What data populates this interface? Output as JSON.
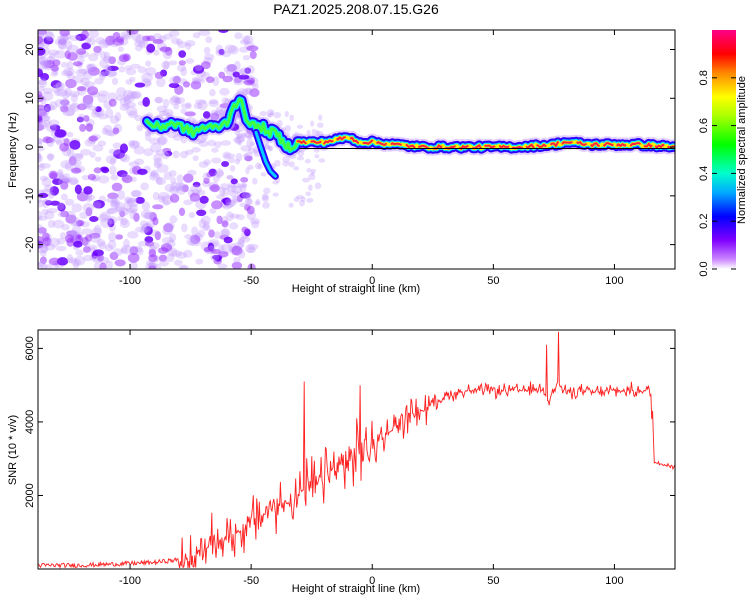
{
  "chart_data": [
    {
      "type": "heatmap",
      "title": "PAZ1.2025.208.07.15.G26",
      "xlabel": "Height of straight line (km)",
      "ylabel": "Frequency (Hz)",
      "xlim": [
        -138,
        125
      ],
      "ylim": [
        -25,
        24
      ],
      "x_ticks": [
        -100,
        -50,
        0,
        50,
        100
      ],
      "y_ticks": [
        -20,
        -10,
        0,
        10,
        20
      ],
      "colorbar": {
        "label": "Normalized spectral amplitude",
        "range": [
          0,
          1
        ],
        "ticks": [
          "0.0",
          "0.2",
          "0.4",
          "0.6",
          "0.8"
        ],
        "colormap": [
          "#cc88ff",
          "#6600ff",
          "#0000ff",
          "#00ffff",
          "#00ff00",
          "#ffff00",
          "#ff8800",
          "#ff0000",
          "#ff0080"
        ]
      },
      "ridge_points": [
        {
          "x": -93,
          "y": 5
        },
        {
          "x": -88,
          "y": 4
        },
        {
          "x": -83,
          "y": 5
        },
        {
          "x": -78,
          "y": 4
        },
        {
          "x": -74,
          "y": 3
        },
        {
          "x": -70,
          "y": 4
        },
        {
          "x": -65,
          "y": 4
        },
        {
          "x": -60,
          "y": 5
        },
        {
          "x": -57,
          "y": 9
        },
        {
          "x": -54,
          "y": 9
        },
        {
          "x": -52,
          "y": 6
        },
        {
          "x": -48,
          "y": 4
        },
        {
          "x": -45,
          "y": 4
        },
        {
          "x": -43,
          "y": 3
        },
        {
          "x": -40,
          "y": 3
        },
        {
          "x": -37,
          "y": 1
        },
        {
          "x": -34,
          "y": 0
        },
        {
          "x": -30,
          "y": 1
        },
        {
          "x": -20,
          "y": 1
        },
        {
          "x": -10,
          "y": 2
        },
        {
          "x": -5,
          "y": 1
        },
        {
          "x": 0,
          "y": 1
        },
        {
          "x": 10,
          "y": 0.5
        },
        {
          "x": 20,
          "y": 0
        },
        {
          "x": 40,
          "y": 0
        },
        {
          "x": 60,
          "y": 0
        },
        {
          "x": 75,
          "y": 0.5
        },
        {
          "x": 80,
          "y": 1
        },
        {
          "x": 90,
          "y": 0.5
        },
        {
          "x": 100,
          "y": 0.5
        },
        {
          "x": 110,
          "y": 0.5
        },
        {
          "x": 125,
          "y": 0
        }
      ],
      "zero_line_range": [
        -30,
        125
      ]
    },
    {
      "type": "line",
      "xlabel": "Height of straight line (km)",
      "ylabel": "SNR (10 * v/v)",
      "xlim": [
        -138,
        125
      ],
      "ylim": [
        0,
        6500
      ],
      "x_ticks": [
        -100,
        -50,
        0,
        50,
        100
      ],
      "y_ticks": [
        2000,
        4000,
        6000
      ],
      "color": "#ff2020",
      "series": [
        {
          "x": [
            -138,
            -120,
            -100,
            -90,
            -80,
            -75,
            -70,
            -65,
            -60,
            -55,
            -50,
            -45,
            -40,
            -35,
            -30,
            -27,
            -25,
            -20,
            -15,
            -10,
            -5,
            0,
            5,
            10,
            15,
            20,
            25,
            30,
            35,
            40,
            50,
            60,
            70,
            73,
            75,
            77,
            80,
            85,
            90,
            100,
            110,
            115,
            116,
            120,
            125
          ],
          "y": [
            100,
            100,
            150,
            180,
            250,
            300,
            500,
            700,
            900,
            1000,
            1300,
            1500,
            1700,
            1800,
            2000,
            2300,
            2200,
            2500,
            2700,
            2900,
            3200,
            3300,
            3600,
            3900,
            4200,
            4300,
            4500,
            4700,
            4800,
            4850,
            4850,
            4850,
            4900,
            4600,
            4900,
            5000,
            4800,
            4850,
            4800,
            4850,
            4850,
            4850,
            2900,
            2850,
            2800
          ]
        }
      ],
      "spikes": [
        {
          "x": -28,
          "y": 5100
        },
        {
          "x": -5,
          "y": 5000
        },
        {
          "x": 72,
          "y": 6100
        },
        {
          "x": 77,
          "y": 6450
        }
      ]
    }
  ]
}
